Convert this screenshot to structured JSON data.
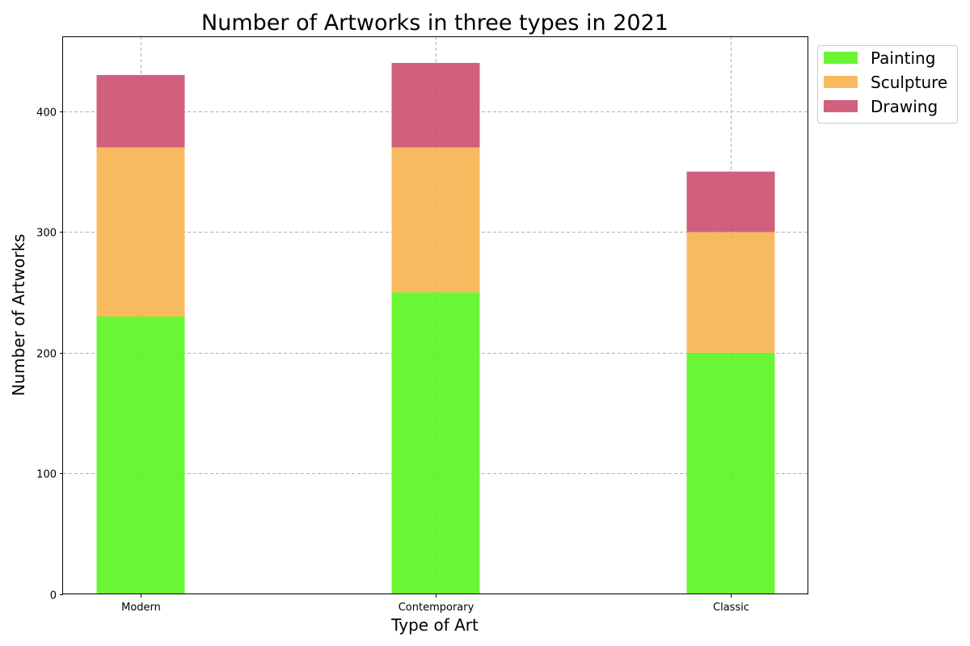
{
  "chart_data": {
    "type": "bar",
    "stacked": true,
    "title": "Number of Artworks in three types in 2021",
    "xlabel": "Type of Art",
    "ylabel": "Number of Artworks",
    "categories": [
      "Modern",
      "Contemporary",
      "Classic"
    ],
    "series": [
      {
        "name": "Painting",
        "values": [
          230,
          250,
          200
        ],
        "color": "#5af51f"
      },
      {
        "name": "Sculpture",
        "values": [
          140,
          120,
          100
        ],
        "color": "#f7b24d"
      },
      {
        "name": "Drawing",
        "values": [
          60,
          70,
          50
        ],
        "color": "#cc4f71"
      }
    ],
    "ylim": [
      0,
      462
    ],
    "yticks": [
      0,
      100,
      200,
      300,
      400
    ],
    "grid": true,
    "legend_position": "outside-top-right"
  }
}
